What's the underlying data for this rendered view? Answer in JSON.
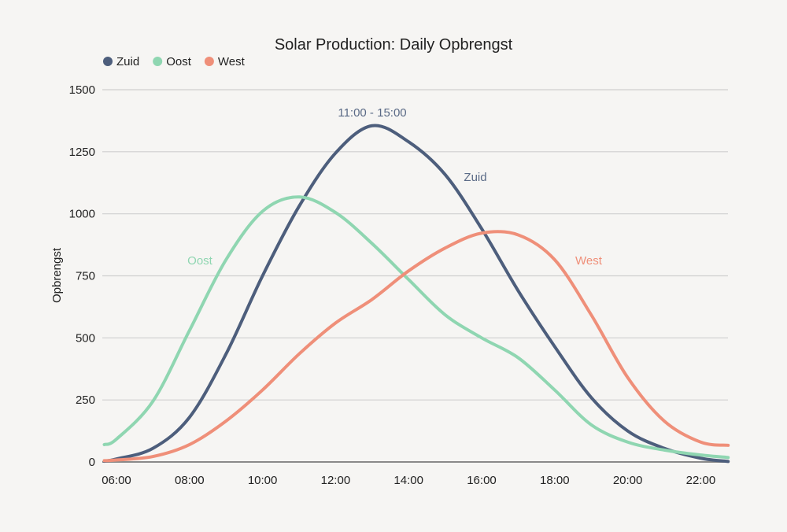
{
  "chart_data": {
    "type": "line",
    "title": "Solar Production: Daily Opbrengst",
    "xlabel": "",
    "ylabel": "Opbrengst",
    "xlim": [
      "05:40",
      "22:45"
    ],
    "ylim": [
      0,
      1500
    ],
    "grid": true,
    "legend_placement": "top-left",
    "x_ticks": [
      "06:00",
      "08:00",
      "10:00",
      "12:00",
      "14:00",
      "16:00",
      "18:00",
      "20:00",
      "22:00"
    ],
    "y_ticks": [
      0,
      250,
      500,
      750,
      1000,
      1250,
      1500
    ],
    "x": [
      "05:40",
      "06:00",
      "07:00",
      "08:00",
      "09:00",
      "10:00",
      "11:00",
      "12:00",
      "13:00",
      "14:00",
      "15:00",
      "16:00",
      "17:00",
      "18:00",
      "19:00",
      "20:00",
      "21:00",
      "22:00",
      "22:45"
    ],
    "series": [
      {
        "name": "Zuid",
        "color": "#4d5e7c",
        "values": [
          3,
          12,
          55,
          180,
          435,
          750,
          1030,
          1245,
          1355,
          1290,
          1158,
          940,
          690,
          465,
          260,
          125,
          55,
          15,
          2
        ]
      },
      {
        "name": "Oost",
        "color": "#8fd6b1",
        "values": [
          70,
          92,
          245,
          530,
          815,
          1010,
          1068,
          1005,
          880,
          735,
          593,
          500,
          420,
          290,
          150,
          80,
          48,
          28,
          18
        ]
      },
      {
        "name": "West",
        "color": "#ef8f79",
        "values": [
          5,
          8,
          22,
          70,
          165,
          290,
          435,
          560,
          655,
          770,
          862,
          922,
          915,
          815,
          593,
          340,
          165,
          80,
          67
        ]
      }
    ],
    "annotations": [
      {
        "text": "11:00 - 15:00"
      },
      {
        "text": "Zuid"
      },
      {
        "text": "Oost"
      },
      {
        "text": "West"
      }
    ]
  }
}
